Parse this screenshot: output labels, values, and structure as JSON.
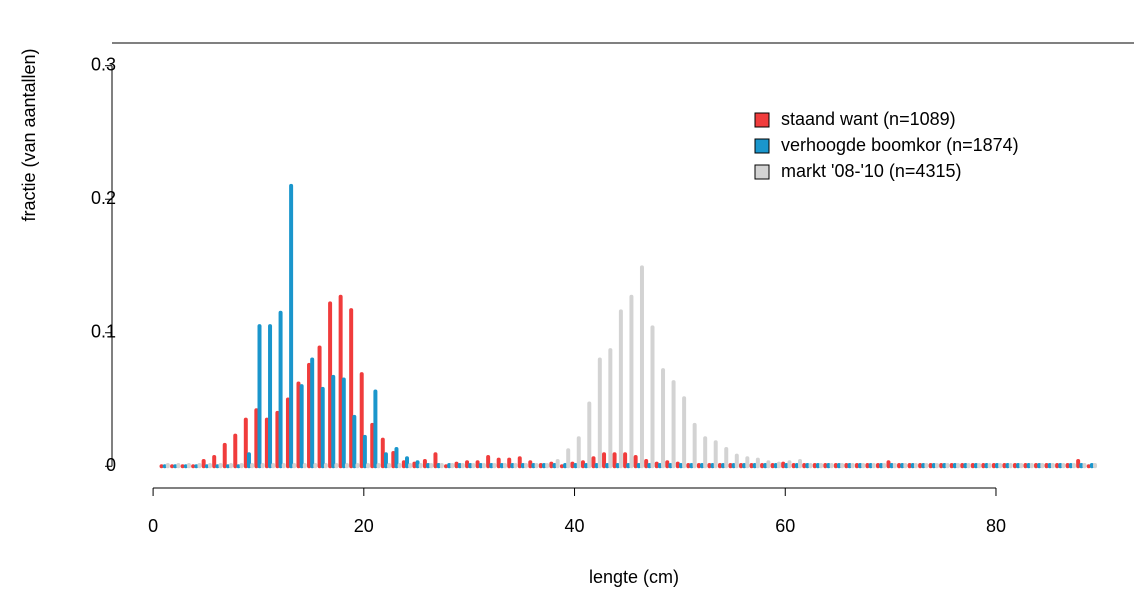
{
  "chart_data": {
    "type": "bar",
    "xlabel": "lengte (cm)",
    "ylabel": "fractie (van aantallen)",
    "x": [
      1,
      2,
      3,
      4,
      5,
      6,
      7,
      8,
      9,
      10,
      11,
      12,
      13,
      14,
      15,
      16,
      17,
      18,
      19,
      20,
      21,
      22,
      23,
      24,
      25,
      26,
      27,
      28,
      29,
      30,
      31,
      32,
      33,
      34,
      35,
      36,
      37,
      38,
      39,
      40,
      41,
      42,
      43,
      44,
      45,
      46,
      47,
      48,
      49,
      50,
      51,
      52,
      53,
      54,
      55,
      56,
      57,
      58,
      59,
      60,
      61,
      62,
      63,
      64,
      65,
      66,
      67,
      68,
      69,
      70,
      71,
      72,
      73,
      74,
      75,
      76,
      77,
      78,
      79,
      80,
      81,
      82,
      83,
      84,
      85,
      86,
      87,
      88,
      89
    ],
    "series": [
      {
        "name": "staand want (n=1089)",
        "color": "#f03c3c",
        "values": [
          0,
          0,
          0,
          0,
          0.004,
          0.007,
          0.016,
          0.023,
          0.035,
          0.042,
          0.035,
          0.04,
          0.05,
          0.062,
          0.076,
          0.089,
          0.122,
          0.127,
          0.117,
          0.069,
          0.031,
          0.02,
          0.01,
          0.003,
          0.002,
          0.004,
          0.009,
          0,
          0.002,
          0.003,
          0.003,
          0.007,
          0.005,
          0.005,
          0.006,
          0.003,
          0.001,
          0.002,
          0,
          0.002,
          0.003,
          0.006,
          0.009,
          0.009,
          0.009,
          0.007,
          0.004,
          0.002,
          0.003,
          0.002,
          0.001,
          0.001,
          0.001,
          0.001,
          0.001,
          0.001,
          0.001,
          0.001,
          0.001,
          0.002,
          0.001,
          0.001,
          0.001,
          0.001,
          0.001,
          0.001,
          0.001,
          0.001,
          0.001,
          0.003,
          0.001,
          0.001,
          0.001,
          0.001,
          0.001,
          0.001,
          0.001,
          0.001,
          0.001,
          0.001,
          0.001,
          0.001,
          0.001,
          0.001,
          0.001,
          0.001,
          0.001,
          0.004,
          0
        ]
      },
      {
        "name": "verhoogde boomkor (n=1874)",
        "color": "#1a96cc",
        "values": [
          0,
          0,
          0,
          0,
          0,
          0,
          0,
          0,
          0.009,
          0.105,
          0.105,
          0.115,
          0.21,
          0.06,
          0.08,
          0.058,
          0.067,
          0.065,
          0.037,
          0.022,
          0.056,
          0.009,
          0.013,
          0.006,
          0.003,
          0.001,
          0.001,
          0.001,
          0.001,
          0.001,
          0.001,
          0.001,
          0.001,
          0.001,
          0.001,
          0.001,
          0.001,
          0.001,
          0.001,
          0.001,
          0.001,
          0.001,
          0.001,
          0.001,
          0.001,
          0.001,
          0.001,
          0.001,
          0.001,
          0.001,
          0.001,
          0.001,
          0.001,
          0.001,
          0.001,
          0.001,
          0.001,
          0.001,
          0.001,
          0.001,
          0.001,
          0.001,
          0.001,
          0.001,
          0.001,
          0.001,
          0.001,
          0.001,
          0.001,
          0.001,
          0.001,
          0.001,
          0.001,
          0.001,
          0.001,
          0.001,
          0.001,
          0.001,
          0.001,
          0.001,
          0.001,
          0.001,
          0.001,
          0.001,
          0.001,
          0.001,
          0.001,
          0.001,
          0.001
        ]
      },
      {
        "name": "markt '08-'10 (n=4315)",
        "color": "#d3d3d3",
        "values": [
          0.001,
          0.001,
          0.001,
          0.001,
          0.001,
          0.001,
          0.001,
          0.001,
          0.001,
          0.001,
          0.001,
          0.001,
          0.001,
          0.001,
          0.001,
          0.001,
          0.001,
          0.001,
          0.001,
          0.001,
          0.001,
          0.001,
          0.001,
          0.001,
          0.001,
          0.001,
          0.001,
          0.001,
          0.001,
          0.001,
          0.001,
          0.001,
          0.001,
          0.001,
          0.001,
          0.001,
          0.001,
          0.004,
          0.012,
          0.021,
          0.047,
          0.08,
          0.087,
          0.116,
          0.127,
          0.149,
          0.104,
          0.072,
          0.063,
          0.051,
          0.031,
          0.021,
          0.018,
          0.013,
          0.008,
          0.006,
          0.005,
          0.003,
          0.002,
          0.003,
          0.004,
          0.001,
          0.001,
          0.001,
          0.001,
          0.001,
          0.001,
          0.001,
          0.001,
          0.001,
          0.001,
          0.001,
          0.001,
          0.001,
          0.001,
          0.001,
          0.001,
          0.001,
          0.001,
          0.001,
          0.001,
          0.001,
          0.001,
          0.001,
          0.001,
          0.001,
          0.001,
          0.001,
          0.001
        ]
      }
    ],
    "xlim": [
      -3.9,
      93.1
    ],
    "ylim": [
      -0.017,
      0.317
    ],
    "xticks": [
      0,
      20,
      40,
      60,
      80
    ],
    "yticks": [
      0,
      0.1,
      0.2,
      0.3
    ],
    "legend": "upper right"
  }
}
